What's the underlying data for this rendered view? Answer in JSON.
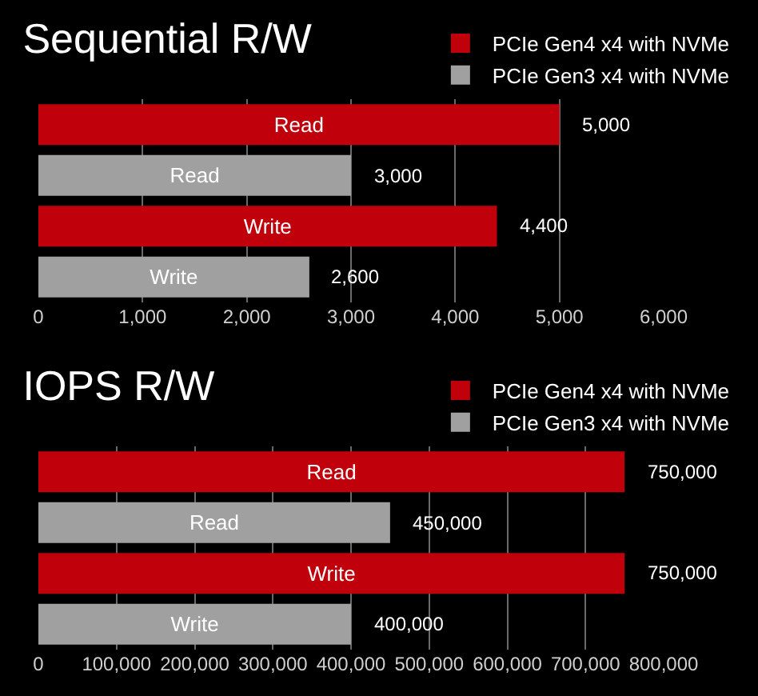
{
  "chart_data": [
    {
      "type": "bar",
      "title": "Sequential R/W",
      "orientation": "horizontal",
      "categories": [
        "Read",
        "Read",
        "Write",
        "Write"
      ],
      "series": [
        {
          "name": "PCIe Gen4 x4 with NVMe",
          "color": "#c0000b",
          "values": [
            5000,
            null,
            4400,
            null
          ],
          "value_labels": [
            "5,000",
            null,
            "4,400",
            null
          ]
        },
        {
          "name": "PCIe Gen3 x4 with NVMe",
          "color": "#a0a0a0",
          "values": [
            null,
            3000,
            null,
            2600
          ],
          "value_labels": [
            null,
            "3,000",
            null,
            "2,600"
          ]
        }
      ],
      "xlim": [
        0,
        6000
      ],
      "xticks": [
        {
          "value": 0,
          "label": "0"
        },
        {
          "value": 1000,
          "label": "1,000"
        },
        {
          "value": 2000,
          "label": "2,000"
        },
        {
          "value": 3000,
          "label": "3,000"
        },
        {
          "value": 4000,
          "label": "4,000"
        },
        {
          "value": 5000,
          "label": "5,000"
        },
        {
          "value": 6000,
          "label": "6,000"
        }
      ],
      "grid": "x",
      "legend": "top right",
      "tick_labels": "x"
    },
    {
      "type": "bar",
      "title": "IOPS R/W",
      "orientation": "horizontal",
      "categories": [
        "Read",
        "Read",
        "Write",
        "Write"
      ],
      "series": [
        {
          "name": "PCIe Gen4 x4 with NVMe",
          "color": "#c0000b",
          "values": [
            750000,
            null,
            750000,
            null
          ],
          "value_labels": [
            "750,000",
            null,
            "750,000",
            null
          ]
        },
        {
          "name": "PCIe Gen3 x4 with NVMe",
          "color": "#a0a0a0",
          "values": [
            null,
            450000,
            null,
            400000
          ],
          "value_labels": [
            null,
            "450,000",
            null,
            "400,000"
          ]
        }
      ],
      "xlim": [
        0,
        800000
      ],
      "xticks": [
        {
          "value": 0,
          "label": "0"
        },
        {
          "value": 100000,
          "label": "100,000"
        },
        {
          "value": 200000,
          "label": "200,000"
        },
        {
          "value": 300000,
          "label": "300,000"
        },
        {
          "value": 400000,
          "label": "400,000"
        },
        {
          "value": 500000,
          "label": "500,000"
        },
        {
          "value": 600000,
          "label": "600,000"
        },
        {
          "value": 700000,
          "label": "700,000"
        },
        {
          "value": 800000,
          "label": "800,000"
        }
      ],
      "grid": "x",
      "legend": "top right",
      "tick_labels": "x"
    }
  ]
}
